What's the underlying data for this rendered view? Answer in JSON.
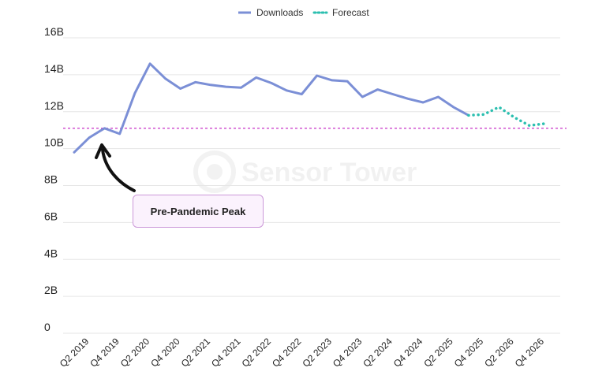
{
  "chart_data": {
    "type": "line",
    "title": "",
    "xlabel": "",
    "ylabel": "",
    "ylim": [
      0,
      16
    ],
    "y_tick_labels": [
      "0",
      "2B",
      "4B",
      "6B",
      "8B",
      "10B",
      "12B",
      "14B",
      "16B"
    ],
    "x_tick_labels": [
      "Q2 2019",
      "Q4 2019",
      "Q2 2020",
      "Q4 2020",
      "Q2 2021",
      "Q4 2021",
      "Q2 2022",
      "Q4 2022",
      "Q2 2023",
      "Q4 2023",
      "Q2 2024",
      "Q4 2024",
      "Q2 2025",
      "Q4 2025",
      "Q2 2026",
      "Q4 2026"
    ],
    "x": [
      "Q1 2019",
      "Q2 2019",
      "Q3 2019",
      "Q4 2019",
      "Q1 2020",
      "Q2 2020",
      "Q3 2020",
      "Q4 2020",
      "Q1 2021",
      "Q2 2021",
      "Q3 2021",
      "Q4 2021",
      "Q1 2022",
      "Q2 2022",
      "Q3 2022",
      "Q4 2022",
      "Q1 2023",
      "Q2 2023",
      "Q3 2023",
      "Q4 2023",
      "Q1 2024",
      "Q2 2024",
      "Q3 2024",
      "Q4 2024",
      "Q1 2025",
      "Q2 2025",
      "Q3 2025",
      "Q4 2025",
      "Q1 2026",
      "Q2 2026",
      "Q3 2026",
      "Q4 2026"
    ],
    "series": [
      {
        "name": "Downloads",
        "color": "#7b8fd6",
        "style": "solid",
        "values": [
          9.8,
          10.6,
          11.1,
          10.8,
          13.0,
          14.6,
          13.8,
          13.25,
          13.6,
          13.45,
          13.35,
          13.3,
          13.85,
          13.55,
          13.15,
          12.95,
          13.95,
          13.7,
          13.65,
          12.8,
          13.2,
          12.95,
          12.7,
          12.5,
          12.8,
          12.25,
          11.8,
          null,
          null,
          null,
          null,
          null
        ]
      },
      {
        "name": "Forecast",
        "color": "#2cbfb0",
        "style": "dotted",
        "values": [
          null,
          null,
          null,
          null,
          null,
          null,
          null,
          null,
          null,
          null,
          null,
          null,
          null,
          null,
          null,
          null,
          null,
          null,
          null,
          null,
          null,
          null,
          null,
          null,
          null,
          null,
          11.8,
          11.85,
          12.25,
          11.7,
          11.25,
          11.35
        ]
      }
    ],
    "reference_line": {
      "value": 11.1,
      "color": "#cc44cc",
      "style": "dashed"
    },
    "annotation": {
      "text": "Pre-Pandemic Peak",
      "points_to": "Q3 2019"
    },
    "legend": {
      "position": "top-center"
    },
    "grid": true,
    "watermark": "Sensor Tower"
  }
}
